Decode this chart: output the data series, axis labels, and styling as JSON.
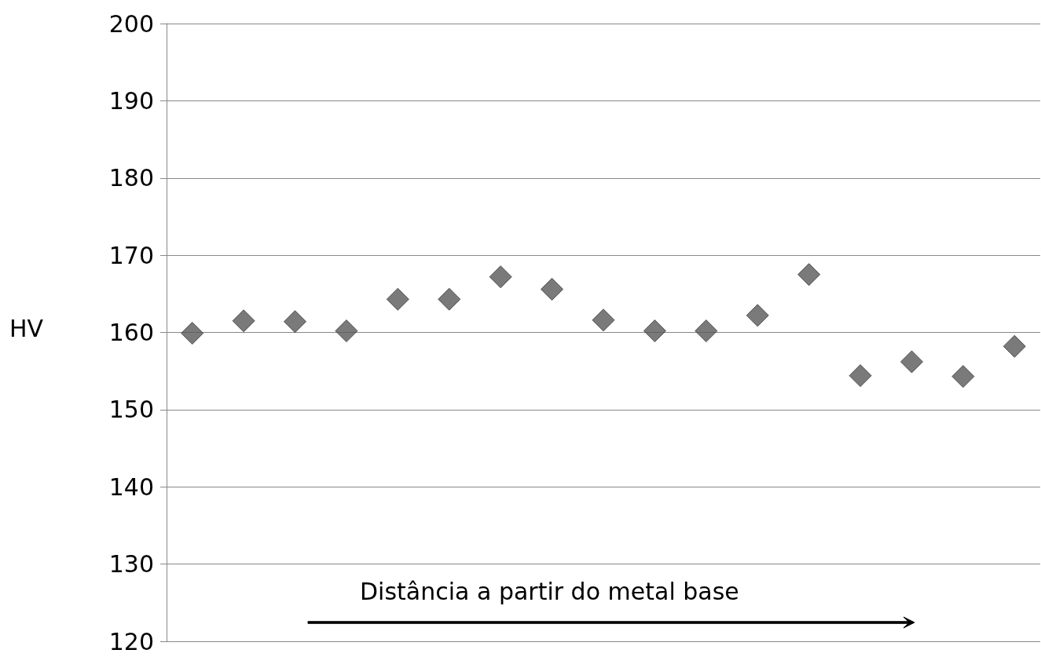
{
  "chart_data": {
    "type": "scatter",
    "ylabel": "HV",
    "categories": [
      null,
      null,
      null,
      null,
      null,
      null,
      null,
      null,
      null,
      null,
      null,
      null,
      null,
      null,
      null,
      null,
      null
    ],
    "series": [
      {
        "color": "#595959",
        "values": [
          159.9,
          161.5,
          161.4,
          160.2,
          164.3,
          164.3,
          167.2,
          165.6,
          161.6,
          160.2,
          160.2,
          162.2,
          167.5,
          154.4,
          156.2,
          154.3,
          158.2
        ]
      }
    ],
    "ylim": [
      120,
      200
    ],
    "yticks": [
      120,
      130,
      140,
      150,
      160,
      170,
      180,
      190,
      200
    ],
    "grid": "y",
    "marker": "diamond",
    "tick_labels": "y",
    "annotations": [
      "Distância a partir do metal base"
    ]
  }
}
